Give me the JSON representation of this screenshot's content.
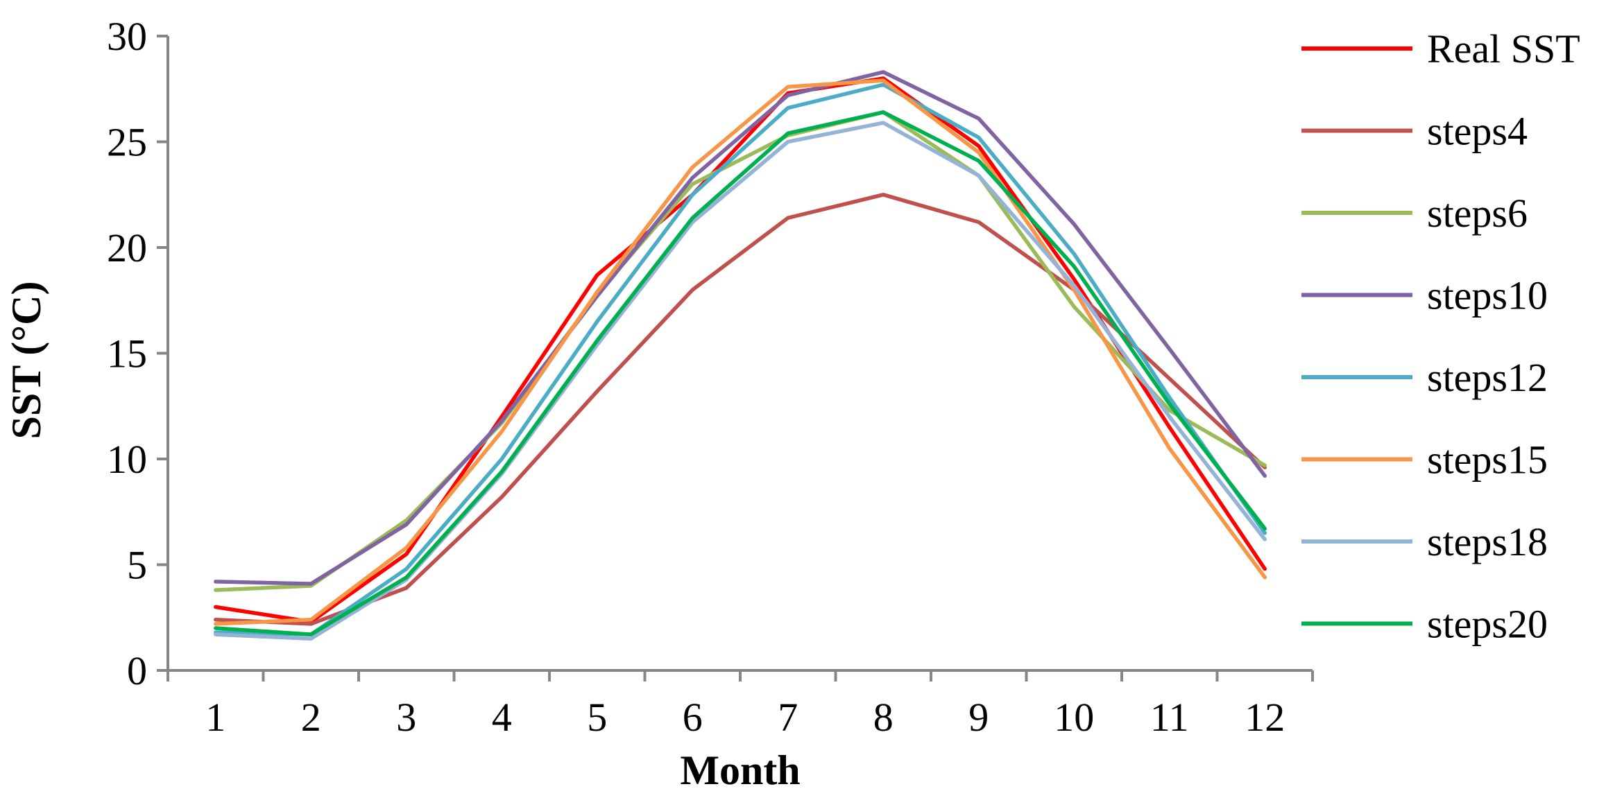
{
  "chart_data": {
    "type": "line",
    "title": "",
    "xlabel": "Month",
    "ylabel": "SST (°C)",
    "categories": [
      "1",
      "2",
      "3",
      "4",
      "5",
      "6",
      "7",
      "8",
      "9",
      "10",
      "11",
      "12"
    ],
    "ylim": [
      0,
      30
    ],
    "yticks": [
      0,
      5,
      10,
      15,
      20,
      25,
      30
    ],
    "ytick_labels": [
      "0",
      "5",
      "10",
      "15",
      "20",
      "25",
      "30"
    ],
    "grid": false,
    "legend_position": "right",
    "series": [
      {
        "name": "Real SST",
        "color": "#ff0000",
        "values": [
          3.0,
          2.3,
          5.5,
          12.0,
          18.7,
          22.5,
          27.3,
          28.0,
          24.8,
          18.5,
          11.5,
          4.8
        ]
      },
      {
        "name": "steps4",
        "color": "#c0504d",
        "values": [
          2.4,
          2.2,
          3.9,
          8.2,
          13.2,
          18.0,
          21.4,
          22.5,
          21.2,
          18.0,
          13.8,
          9.6
        ]
      },
      {
        "name": "steps6",
        "color": "#9bbb59",
        "values": [
          3.8,
          4.0,
          7.1,
          11.7,
          17.8,
          23.0,
          25.3,
          26.4,
          23.4,
          17.2,
          12.3,
          9.7
        ]
      },
      {
        "name": "steps10",
        "color": "#8064a2",
        "values": [
          4.2,
          4.1,
          6.9,
          11.8,
          17.7,
          23.3,
          27.2,
          28.3,
          26.1,
          21.1,
          15.2,
          9.2
        ]
      },
      {
        "name": "steps12",
        "color": "#4bacc6",
        "values": [
          1.8,
          1.7,
          4.8,
          10.0,
          16.5,
          22.5,
          26.6,
          27.7,
          25.2,
          19.7,
          12.9,
          6.5
        ]
      },
      {
        "name": "steps15",
        "color": "#f79646",
        "values": [
          2.2,
          2.4,
          5.8,
          11.3,
          17.9,
          23.8,
          27.6,
          27.9,
          24.5,
          18.0,
          10.5,
          4.4
        ]
      },
      {
        "name": "steps18",
        "color": "#95b3d7",
        "values": [
          1.7,
          1.5,
          4.3,
          9.3,
          15.4,
          21.2,
          25.0,
          25.9,
          23.4,
          18.2,
          12.0,
          6.2
        ]
      },
      {
        "name": "steps20",
        "color": "#00b050",
        "values": [
          2.0,
          1.7,
          4.4,
          9.4,
          15.6,
          21.4,
          25.4,
          26.4,
          24.1,
          19.1,
          12.6,
          6.7
        ]
      }
    ]
  }
}
